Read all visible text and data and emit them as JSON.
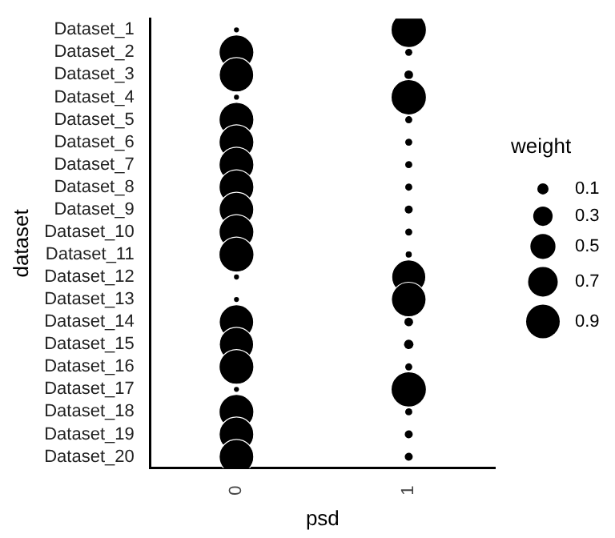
{
  "chart_data": {
    "type": "bubble",
    "orientation": "horizontal",
    "xlabel": "psd",
    "ylabel": "dataset",
    "legend_title": "weight",
    "grid": false,
    "categories": [
      "Dataset_1",
      "Dataset_2",
      "Dataset_3",
      "Dataset_4",
      "Dataset_5",
      "Dataset_6",
      "Dataset_7",
      "Dataset_8",
      "Dataset_9",
      "Dataset_10",
      "Dataset_11",
      "Dataset_12",
      "Dataset_13",
      "Dataset_14",
      "Dataset_15",
      "Dataset_16",
      "Dataset_17",
      "Dataset_18",
      "Dataset_19",
      "Dataset_20"
    ],
    "xlim": [
      -0.5,
      1.5
    ],
    "xticks": [
      0,
      1
    ],
    "series": [
      {
        "color": "#000000",
        "values": [
          0,
          0,
          0,
          0,
          0,
          0,
          0,
          0,
          0,
          0,
          0,
          0,
          0,
          0,
          0,
          0,
          0,
          0,
          0,
          0
        ],
        "sizes": [
          0.02,
          0.96,
          0.94,
          0.02,
          0.96,
          0.96,
          0.96,
          0.96,
          0.95,
          0.96,
          0.97,
          0.02,
          0.02,
          0.94,
          0.93,
          0.96,
          0.02,
          0.96,
          0.95,
          0.95
        ]
      },
      {
        "color": "#000000",
        "values": [
          1,
          1,
          1,
          1,
          1,
          1,
          1,
          1,
          1,
          1,
          1,
          1,
          1,
          1,
          1,
          1,
          1,
          1,
          1,
          1
        ],
        "sizes": [
          0.99,
          0.04,
          0.06,
          0.99,
          0.04,
          0.04,
          0.04,
          0.04,
          0.05,
          0.04,
          0.03,
          0.92,
          0.95,
          0.06,
          0.07,
          0.04,
          0.99,
          0.04,
          0.05,
          0.05
        ]
      }
    ],
    "size_legend": [
      0.1,
      0.3,
      0.5,
      0.7,
      0.9
    ]
  }
}
